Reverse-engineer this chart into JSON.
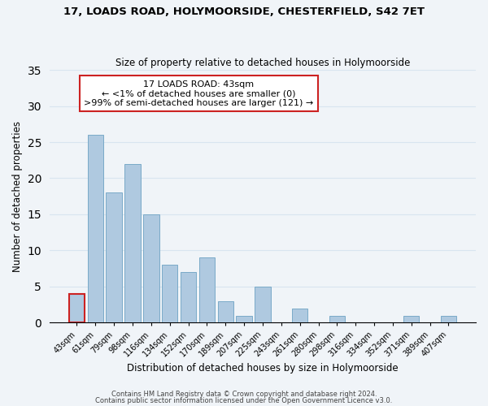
{
  "title": "17, LOADS ROAD, HOLYMOORSIDE, CHESTERFIELD, S42 7ET",
  "subtitle": "Size of property relative to detached houses in Holymoorside",
  "xlabel": "Distribution of detached houses by size in Holymoorside",
  "ylabel": "Number of detached properties",
  "footer_line1": "Contains HM Land Registry data © Crown copyright and database right 2024.",
  "footer_line2": "Contains public sector information licensed under the Open Government Licence v3.0.",
  "categories": [
    "43sqm",
    "61sqm",
    "79sqm",
    "98sqm",
    "116sqm",
    "134sqm",
    "152sqm",
    "170sqm",
    "189sqm",
    "207sqm",
    "225sqm",
    "243sqm",
    "261sqm",
    "280sqm",
    "298sqm",
    "316sqm",
    "334sqm",
    "352sqm",
    "371sqm",
    "389sqm",
    "407sqm"
  ],
  "values": [
    4,
    26,
    18,
    22,
    15,
    8,
    7,
    9,
    3,
    1,
    5,
    0,
    2,
    0,
    1,
    0,
    0,
    0,
    1,
    0,
    1
  ],
  "bar_color": "#afc9e0",
  "bar_edge_color": "#7aaac8",
  "highlight_index": 0,
  "highlight_edge_color": "#cc2222",
  "ylim": [
    0,
    35
  ],
  "yticks": [
    0,
    5,
    10,
    15,
    20,
    25,
    30,
    35
  ],
  "annotation_box_text_line1": "17 LOADS ROAD: 43sqm",
  "annotation_box_text_line2": "← <1% of detached houses are smaller (0)",
  "annotation_box_text_line3": ">99% of semi-detached houses are larger (121) →",
  "annotation_box_facecolor": "#ffffff",
  "annotation_box_edgecolor": "#cc2222",
  "grid_color": "#d8e4f0",
  "background_color": "#f0f4f8"
}
